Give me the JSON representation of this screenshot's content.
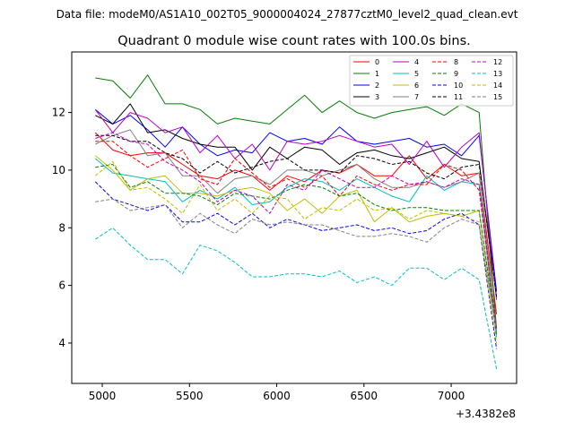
{
  "header": {
    "file_label": "Data file: modeM0/AS1A10_002T05_9000004024_27877cztM0_level2_quad_clean.evt"
  },
  "chart_data": {
    "type": "line",
    "title": "Quadrant 0 module wise count rates with 100.0s bins.",
    "xlabel": "",
    "ylabel": "",
    "x_offset_label": "+3.4382e8",
    "xlim": [
      4825,
      7375
    ],
    "ylim": [
      2.6,
      14.1
    ],
    "xticks": [
      5000,
      5500,
      6000,
      6500,
      7000
    ],
    "yticks": [
      4,
      6,
      8,
      10,
      12
    ],
    "x": [
      4960,
      5060,
      5160,
      5260,
      5360,
      5460,
      5560,
      5660,
      5760,
      5860,
      5960,
      6060,
      6160,
      6260,
      6360,
      6460,
      6560,
      6660,
      6760,
      6860,
      6960,
      7060,
      7160,
      7260
    ],
    "series": [
      {
        "name": "0",
        "color": "#ff0000",
        "dash": "solid",
        "values": [
          11.3,
          10.7,
          10.5,
          10.6,
          10.6,
          10.2,
          9.8,
          9.7,
          10.0,
          9.8,
          9.3,
          9.8,
          9.6,
          10.0,
          9.9,
          10.2,
          9.8,
          9.8,
          10.5,
          9.7,
          10.2,
          9.8,
          9.9,
          5.0
        ]
      },
      {
        "name": "1",
        "color": "#008000",
        "dash": "solid",
        "values": [
          13.2,
          13.1,
          12.5,
          13.3,
          12.3,
          12.3,
          12.1,
          11.6,
          11.8,
          11.7,
          11.6,
          12.1,
          12.6,
          12.0,
          12.4,
          12.0,
          11.8,
          12.0,
          12.1,
          12.2,
          11.9,
          12.3,
          12.0,
          4.5
        ]
      },
      {
        "name": "2",
        "color": "#0000ff",
        "dash": "solid",
        "values": [
          12.1,
          11.6,
          11.9,
          11.4,
          10.8,
          11.5,
          10.9,
          10.5,
          10.7,
          10.6,
          11.3,
          11.0,
          11.1,
          10.9,
          11.5,
          11.0,
          10.9,
          11.0,
          11.1,
          10.8,
          10.9,
          10.5,
          11.2,
          5.8
        ]
      },
      {
        "name": "3",
        "color": "#000000",
        "dash": "solid",
        "values": [
          11.9,
          11.6,
          12.3,
          11.3,
          11.4,
          11.1,
          10.9,
          10.8,
          10.8,
          10.0,
          10.8,
          10.4,
          10.8,
          10.7,
          10.2,
          10.6,
          10.7,
          10.5,
          10.4,
          10.6,
          10.8,
          10.4,
          10.3,
          5.6
        ]
      },
      {
        "name": "4",
        "color": "#bf00bf",
        "dash": "solid",
        "values": [
          12.1,
          11.3,
          12.0,
          11.8,
          11.3,
          11.5,
          10.6,
          11.2,
          10.4,
          10.9,
          10.0,
          11.0,
          10.9,
          11.0,
          11.2,
          11.0,
          10.8,
          10.9,
          10.2,
          11.0,
          10.1,
          10.8,
          11.3,
          5.5
        ]
      },
      {
        "name": "5",
        "color": "#00bfbf",
        "dash": "solid",
        "values": [
          10.4,
          9.9,
          9.8,
          9.7,
          9.6,
          8.9,
          9.3,
          9.0,
          9.4,
          8.8,
          8.9,
          9.4,
          9.7,
          9.6,
          9.3,
          9.7,
          9.4,
          9.1,
          8.9,
          9.8,
          9.3,
          9.6,
          9.5,
          4.2
        ]
      },
      {
        "name": "6",
        "color": "#bfbf00",
        "dash": "solid",
        "values": [
          10.5,
          10.0,
          9.3,
          9.7,
          9.8,
          9.2,
          9.2,
          9.1,
          9.3,
          9.4,
          9.2,
          8.6,
          9.0,
          8.5,
          9.1,
          9.3,
          8.2,
          8.7,
          8.2,
          8.4,
          8.5,
          8.4,
          8.6,
          4.4
        ]
      },
      {
        "name": "7",
        "color": "#808080",
        "dash": "solid",
        "values": [
          10.9,
          11.2,
          11.4,
          10.5,
          10.6,
          9.8,
          9.8,
          9.2,
          9.7,
          9.8,
          9.5,
          10.0,
          10.0,
          9.8,
          10.0,
          10.2,
          9.7,
          9.4,
          9.4,
          9.6,
          9.4,
          9.6,
          9.9,
          4.4
        ]
      },
      {
        "name": "8",
        "color": "#ff0000",
        "dash": "dashed",
        "values": [
          11.0,
          11.0,
          10.5,
          10.1,
          10.4,
          10.7,
          9.7,
          9.5,
          10.4,
          9.9,
          9.4,
          9.7,
          9.4,
          9.8,
          9.1,
          9.8,
          9.5,
          9.3,
          9.5,
          9.5,
          10.2,
          10.0,
          9.3,
          4.5
        ]
      },
      {
        "name": "9",
        "color": "#008000",
        "dash": "dashed",
        "values": [
          10.1,
          10.2,
          9.4,
          9.6,
          9.2,
          9.2,
          9.1,
          8.8,
          9.2,
          9.1,
          9.0,
          9.3,
          9.5,
          9.4,
          9.1,
          9.2,
          8.8,
          8.6,
          8.7,
          8.7,
          8.6,
          8.6,
          8.6,
          4.3
        ]
      },
      {
        "name": "10",
        "color": "#0000ff",
        "dash": "dashed",
        "values": [
          9.6,
          9.0,
          8.8,
          8.6,
          8.8,
          8.2,
          8.2,
          8.5,
          8.1,
          8.5,
          8.0,
          8.3,
          8.1,
          7.9,
          8.0,
          8.1,
          7.9,
          8.0,
          7.8,
          7.9,
          8.3,
          8.5,
          8.1,
          3.8
        ]
      },
      {
        "name": "11",
        "color": "#000000",
        "dash": "dashed",
        "values": [
          11.2,
          11.2,
          11.0,
          11.0,
          10.6,
          10.4,
          9.9,
          10.3,
          9.9,
          10.1,
          10.3,
          10.4,
          10.0,
          10.0,
          9.9,
          10.5,
          10.4,
          10.2,
          10.3,
          9.9,
          9.7,
          10.1,
          10.2,
          5.6
        ]
      },
      {
        "name": "12",
        "color": "#bf00bf",
        "dash": "dashed",
        "values": [
          11.1,
          11.3,
          11.0,
          10.9,
          10.3,
          10.0,
          9.6,
          8.9,
          9.3,
          9.1,
          8.5,
          9.5,
          9.3,
          10.0,
          9.7,
          9.4,
          9.4,
          9.8,
          9.5,
          9.6,
          9.4,
          9.7,
          9.5,
          4.5
        ]
      },
      {
        "name": "13",
        "color": "#00bfbf",
        "dash": "dashed",
        "values": [
          7.6,
          8.0,
          7.4,
          6.9,
          6.9,
          6.4,
          7.4,
          7.2,
          6.8,
          6.3,
          6.3,
          6.4,
          6.4,
          6.3,
          6.5,
          6.1,
          6.3,
          6.0,
          6.6,
          6.6,
          6.2,
          6.6,
          6.2,
          3.1
        ]
      },
      {
        "name": "14",
        "color": "#bfbf00",
        "dash": "dashed",
        "values": [
          9.8,
          10.3,
          9.3,
          9.4,
          9.0,
          8.5,
          9.5,
          8.6,
          9.0,
          8.5,
          9.1,
          9.0,
          8.3,
          8.7,
          8.6,
          9.0,
          8.6,
          8.7,
          8.3,
          8.6,
          8.5,
          8.4,
          8.2,
          4.0
        ]
      },
      {
        "name": "15",
        "color": "#808080",
        "dash": "dashed",
        "values": [
          8.9,
          9.0,
          8.6,
          8.7,
          8.8,
          8.0,
          8.5,
          8.1,
          7.8,
          8.3,
          8.1,
          8.2,
          8.1,
          8.1,
          7.9,
          7.7,
          7.7,
          7.8,
          7.7,
          7.5,
          8.0,
          8.3,
          8.1,
          4.4
        ]
      }
    ],
    "legend": {
      "position": "top-right",
      "columns": 4
    }
  }
}
